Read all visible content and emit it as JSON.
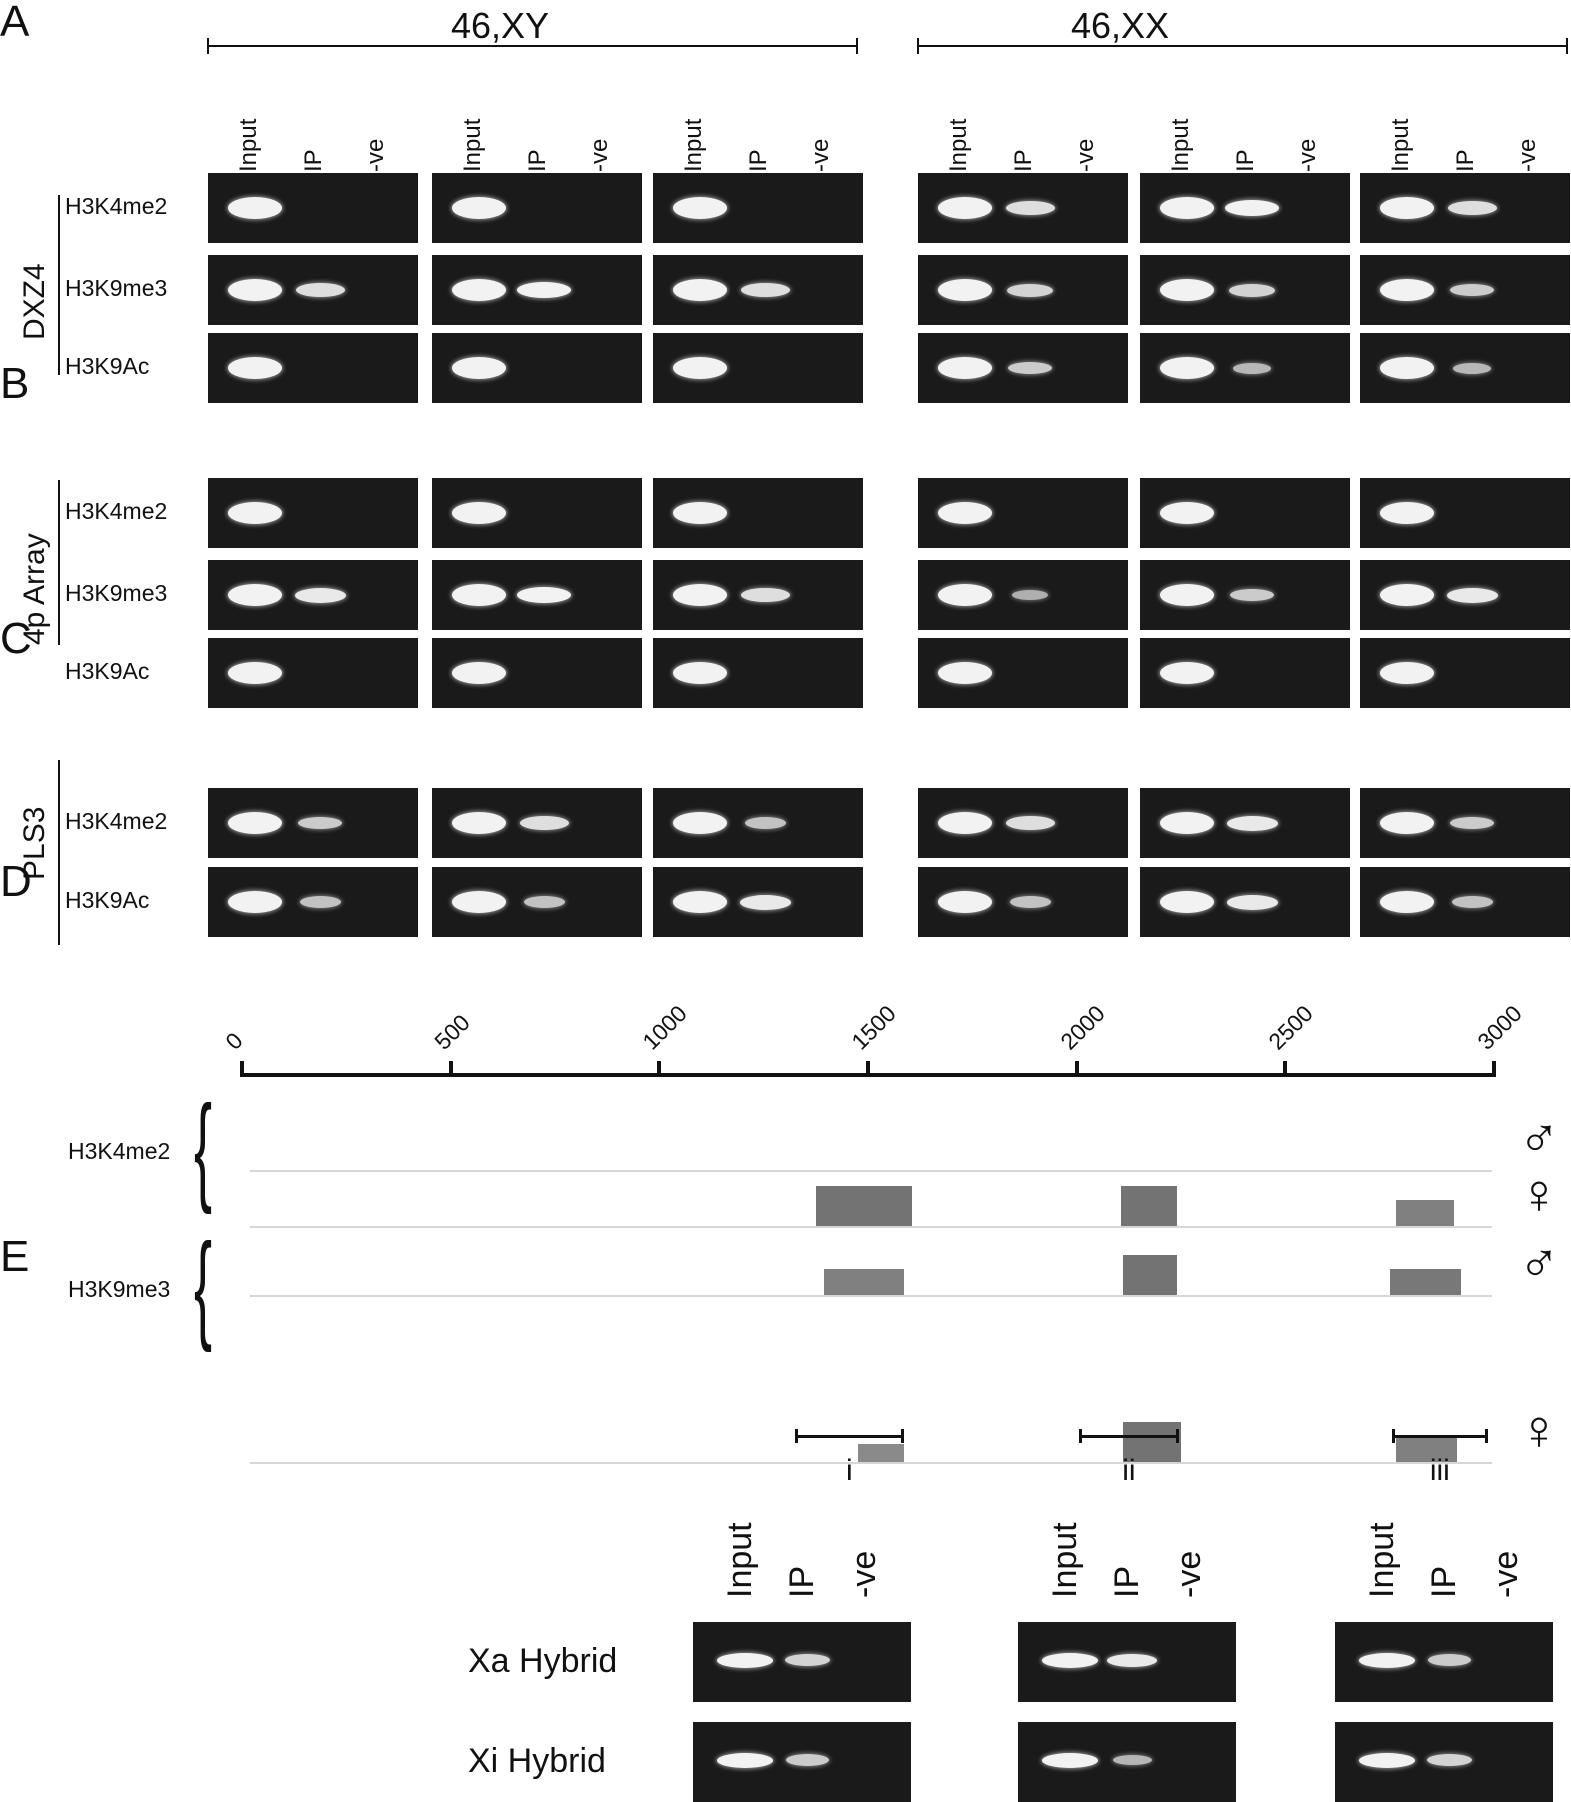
{
  "panels": {
    "A": "A",
    "B": "B",
    "C": "C",
    "D": "D",
    "E": "E"
  },
  "genotypes": {
    "male": "46,XY",
    "female": "46,XX"
  },
  "lanes": [
    "Input",
    "IP",
    "-ve"
  ],
  "groups": {
    "dxz4": "DXZ4",
    "array4p": "4p Array",
    "pls3": "PLS3"
  },
  "rows": {
    "dxz4": [
      "H3K4me2",
      "H3K9me3",
      "H3K9Ac"
    ],
    "array4p": [
      "H3K4me2",
      "H3K9me3",
      "H3K9Ac"
    ],
    "pls3": [
      "H3K4me2",
      "H3K9Ac"
    ]
  },
  "gel_intensity": {
    "dxz4": [
      [
        [
          1,
          0,
          0
        ],
        [
          1,
          0,
          0
        ],
        [
          1,
          0,
          0
        ],
        [
          1,
          0.8,
          0
        ],
        [
          1,
          1,
          0
        ],
        [
          1,
          0.8,
          0
        ]
      ],
      [
        [
          1,
          0.8,
          0
        ],
        [
          1,
          1,
          0
        ],
        [
          1,
          0.8,
          0
        ],
        [
          1,
          0.7,
          0
        ],
        [
          1,
          0.7,
          0
        ],
        [
          1,
          0.6,
          0
        ]
      ],
      [
        [
          1,
          0,
          0
        ],
        [
          1,
          0,
          0
        ],
        [
          1,
          0,
          0
        ],
        [
          1,
          0.6,
          0
        ],
        [
          1,
          0.4,
          0
        ],
        [
          1,
          0.4,
          0
        ]
      ]
    ],
    "array4p": [
      [
        [
          1,
          0,
          0
        ],
        [
          1,
          0,
          0
        ],
        [
          1,
          0,
          0
        ],
        [
          1,
          0,
          0
        ],
        [
          1,
          0,
          0
        ],
        [
          1,
          0,
          0
        ]
      ],
      [
        [
          1,
          0.9,
          0
        ],
        [
          1,
          1,
          0
        ],
        [
          1,
          0.8,
          0
        ],
        [
          1,
          0.3,
          0
        ],
        [
          1,
          0.6,
          0
        ],
        [
          1,
          0.9,
          0
        ]
      ],
      [
        [
          1,
          0,
          0
        ],
        [
          1,
          0,
          0
        ],
        [
          1,
          0,
          0
        ],
        [
          1,
          0,
          0
        ],
        [
          1,
          0,
          0
        ],
        [
          1,
          0,
          0
        ]
      ]
    ],
    "pls3": [
      [
        [
          1,
          0.6,
          0
        ],
        [
          1,
          0.8,
          0
        ],
        [
          1,
          0.5,
          0
        ],
        [
          1,
          0.8,
          0
        ],
        [
          1,
          0.9,
          0
        ],
        [
          1,
          0.6,
          0
        ]
      ],
      [
        [
          1,
          0.5,
          0
        ],
        [
          1,
          0.5,
          0
        ],
        [
          1,
          0.9,
          0
        ],
        [
          1,
          0.5,
          0
        ],
        [
          1,
          0.9,
          0
        ],
        [
          1,
          0.5,
          0
        ]
      ]
    ]
  },
  "chart_data": {
    "type": "bar",
    "axis": {
      "min": 0,
      "max": 3000,
      "ticks": [
        0,
        500,
        1000,
        1500,
        2000,
        2500,
        3000
      ]
    },
    "tracks": [
      {
        "mark": "H3K4me2",
        "sex": "male",
        "bars": []
      },
      {
        "mark": "H3K4me2",
        "sex": "female",
        "bars": [
          {
            "start": 1380,
            "end": 1610,
            "level": 0.7
          },
          {
            "start": 2110,
            "end": 2245,
            "level": 0.7
          },
          {
            "start": 2770,
            "end": 2910,
            "level": 0.45
          }
        ]
      },
      {
        "mark": "H3K9me3",
        "sex": "male",
        "bars": [
          {
            "start": 1400,
            "end": 1590,
            "level": 0.45
          },
          {
            "start": 2115,
            "end": 2245,
            "level": 0.7
          },
          {
            "start": 2755,
            "end": 2925,
            "level": 0.6
          }
        ]
      },
      {
        "mark": "H3K9me3",
        "sex": "female",
        "bars": [
          {
            "start": 1480,
            "end": 1590,
            "level": 0.25
          },
          {
            "start": 2115,
            "end": 2255,
            "level": 0.7
          },
          {
            "start": 2770,
            "end": 2915,
            "level": 0.45
          }
        ]
      }
    ],
    "regions": [
      {
        "label": "i",
        "start": 1330,
        "end": 1590
      },
      {
        "label": "ii",
        "start": 2010,
        "end": 2250
      },
      {
        "label": "iii",
        "start": 2760,
        "end": 2990
      }
    ],
    "sex_symbols": {
      "male": "♂",
      "female": "♀"
    }
  },
  "hybrids": {
    "rows": [
      "Xa Hybrid",
      "Xi Hybrid"
    ],
    "intensity": [
      [
        [
          1,
          0.7,
          0
        ],
        [
          1,
          0.9,
          0
        ],
        [
          1,
          0.6,
          0
        ]
      ],
      [
        [
          1,
          0.6,
          0
        ],
        [
          1,
          0.4,
          0
        ],
        [
          1,
          0.7,
          0
        ]
      ]
    ]
  }
}
